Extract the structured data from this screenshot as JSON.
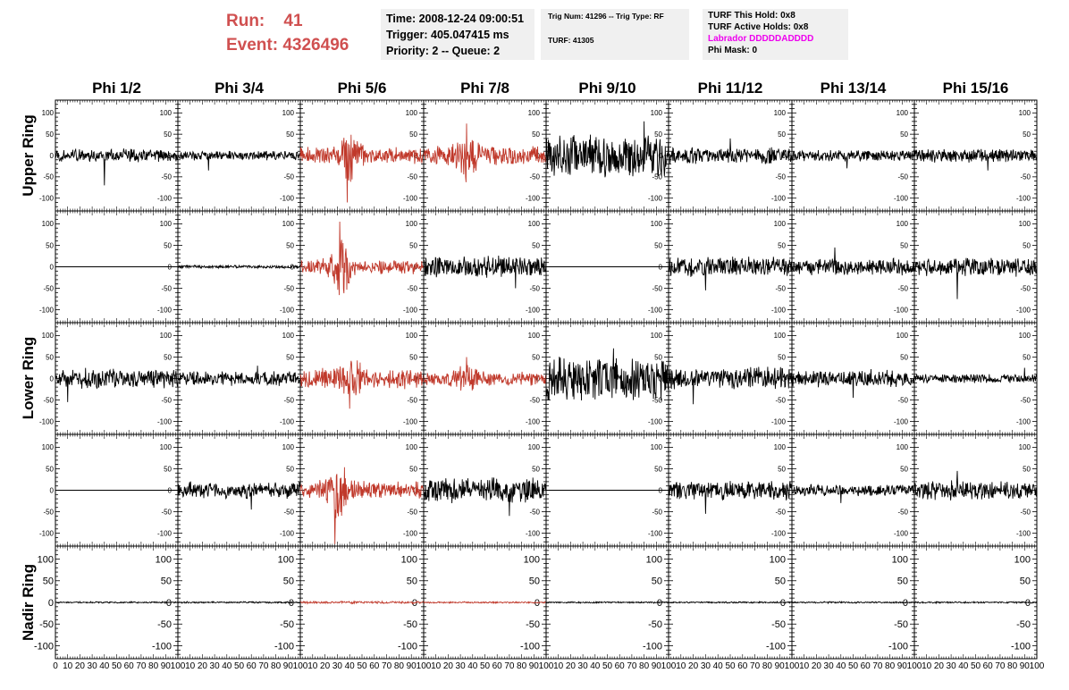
{
  "header": {
    "run_label": "Run:",
    "run_value": "41",
    "event_label": "Event:",
    "event_value": "4326496",
    "time": "Time: 2008-12-24 09:00:51",
    "trigger": "Trigger: 405.047415 ms",
    "priority": "Priority: 2 -- Queue: 2",
    "trig_num": "Trig Num: 41296 -- Trig Type: RF",
    "turf": "TURF: 41305",
    "turf_this_hold": "TURF This Hold: 0x8",
    "turf_active_holds": "TURF Active Holds: 0x8",
    "labrador": "Labrador DDDDDADDDD",
    "phi_mask": "Phi Mask: 0"
  },
  "colors": {
    "highlight": "#c0392b",
    "trace": "#000000",
    "labrador": "#ee00ee",
    "header_red": "#d05050"
  },
  "chart_data": {
    "type": "line",
    "columns": [
      "Phi 1/2",
      "Phi 3/4",
      "Phi 5/6",
      "Phi 7/8",
      "Phi 9/10",
      "Phi 11/12",
      "Phi 13/14",
      "Phi 15/16"
    ],
    "rows": [
      "Upper Ring",
      "Upper Ring",
      "Lower Ring",
      "Lower Ring",
      "Nadir Ring"
    ],
    "row_labels": [
      "Upper Ring",
      "Lower Ring",
      "Nadir Ring"
    ],
    "xlim": [
      0,
      100
    ],
    "ylim": [
      -130,
      130
    ],
    "x_ticks": [
      "0",
      "10",
      "20",
      "30",
      "40",
      "50",
      "60",
      "70",
      "80",
      "90",
      "100"
    ],
    "y_ticks": [
      "100",
      "50",
      "0",
      "-50",
      "-100"
    ],
    "highlighted": [
      [
        0,
        2
      ],
      [
        0,
        3
      ],
      [
        1,
        2
      ],
      [
        2,
        2
      ],
      [
        2,
        3
      ],
      [
        3,
        2
      ],
      [
        4,
        2
      ],
      [
        4,
        3
      ]
    ],
    "traces": [
      [
        {
          "amp": 18,
          "spike": {
            "x": 40,
            "v": -70
          }
        },
        {
          "amp": 12,
          "spike": {
            "x": 25,
            "v": -35
          }
        },
        {
          "amp": 22,
          "spike": {
            "x": 38,
            "v": -110
          },
          "burst": {
            "x": 40,
            "amp": 50
          }
        },
        {
          "amp": 25,
          "spike": {
            "x": 35,
            "v": 75
          },
          "burst": {
            "x": 35,
            "amp": 45
          }
        },
        {
          "amp": 55,
          "spike": {
            "x": 80,
            "v": 80
          }
        },
        {
          "amp": 22,
          "spike": {
            "x": 50,
            "v": 40
          }
        },
        {
          "amp": 15,
          "spike": {
            "x": 45,
            "v": -30
          }
        },
        {
          "amp": 18,
          "spike": {
            "x": 60,
            "v": -35
          }
        }
      ],
      [
        {
          "amp": 0,
          "flat": true
        },
        {
          "amp": 4,
          "spike": null
        },
        {
          "amp": 18,
          "spike": {
            "x": 32,
            "v": 105
          },
          "burst": {
            "x": 32,
            "amp": 65
          }
        },
        {
          "amp": 28,
          "spike": {
            "x": 75,
            "v": -50
          }
        },
        {
          "amp": 0,
          "flat": true
        },
        {
          "amp": 25,
          "spike": {
            "x": 30,
            "v": -55
          }
        },
        {
          "amp": 22,
          "spike": {
            "x": 35,
            "v": 45
          }
        },
        {
          "amp": 25,
          "spike": {
            "x": 35,
            "v": -75
          }
        }
      ],
      [
        {
          "amp": 25,
          "spike": {
            "x": 10,
            "v": -55
          }
        },
        {
          "amp": 18,
          "spike": {
            "x": 65,
            "v": 30
          }
        },
        {
          "amp": 25,
          "spike": {
            "x": 40,
            "v": -70
          },
          "burst": {
            "x": 42,
            "amp": 35
          }
        },
        {
          "amp": 18,
          "spike": {
            "x": 35,
            "v": 50
          },
          "burst": {
            "x": 35,
            "amp": 30
          }
        },
        {
          "amp": 55,
          "spike": {
            "x": 55,
            "v": 70
          }
        },
        {
          "amp": 30,
          "spike": {
            "x": 20,
            "v": -60
          }
        },
        {
          "amp": 22,
          "spike": {
            "x": 50,
            "v": -45
          }
        },
        {
          "amp": 12,
          "spike": {
            "x": 90,
            "v": 25
          }
        }
      ],
      [
        {
          "amp": 0,
          "flat": true
        },
        {
          "amp": 22,
          "spike": {
            "x": 60,
            "v": -45
          }
        },
        {
          "amp": 22,
          "spike": {
            "x": 28,
            "v": -125
          },
          "burst": {
            "x": 30,
            "amp": 55
          }
        },
        {
          "amp": 32,
          "spike": {
            "x": 70,
            "v": -60
          }
        },
        {
          "amp": 0,
          "flat": true
        },
        {
          "amp": 25,
          "spike": {
            "x": 30,
            "v": -55
          }
        },
        {
          "amp": 14,
          "spike": {
            "x": 40,
            "v": -30
          }
        },
        {
          "amp": 25,
          "spike": {
            "x": 35,
            "v": 45
          }
        }
      ],
      [
        {
          "amp": 2,
          "spike": null
        },
        {
          "amp": 2,
          "spike": null
        },
        {
          "amp": 3,
          "spike": null
        },
        {
          "amp": 2,
          "spike": null
        },
        {
          "amp": 2,
          "spike": null
        },
        {
          "amp": 2,
          "spike": null
        },
        {
          "amp": 2,
          "spike": null
        },
        {
          "amp": 2,
          "spike": null
        }
      ]
    ]
  }
}
